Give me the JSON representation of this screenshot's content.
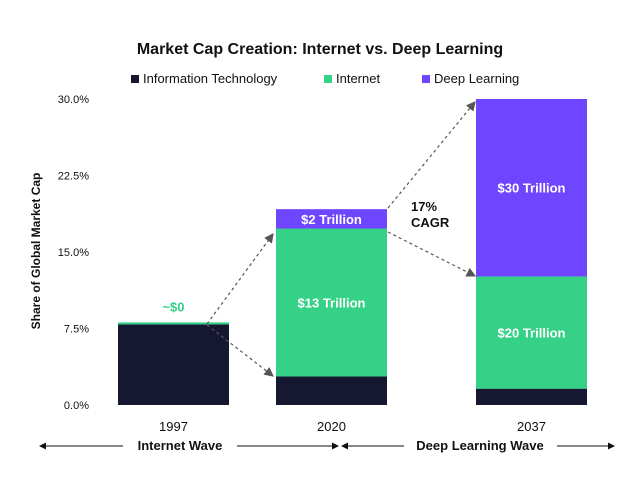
{
  "chart_data": {
    "type": "bar",
    "stacked": true,
    "title": "Market Cap Creation: Internet vs. Deep Learning",
    "ylabel": "Share of Global Market Cap",
    "xlabel": "",
    "categories": [
      "1997",
      "2020",
      "2037"
    ],
    "ylim": [
      0,
      30
    ],
    "y_ticks": [
      0,
      7.5,
      15,
      22.5,
      30
    ],
    "y_tick_labels": [
      "0.0%",
      "7.5%",
      "15.0%",
      "22.5%",
      "30.0%"
    ],
    "series": [
      {
        "name": "Information Technology",
        "color": "#161731",
        "values": [
          7.9,
          2.8,
          1.6
        ]
      },
      {
        "name": "Internet",
        "color": "#34d186",
        "values": [
          0.2,
          14.5,
          11.0
        ]
      },
      {
        "name": "Deep Learning",
        "color": "#6f46ff",
        "values": [
          0,
          1.9,
          17.4
        ]
      }
    ],
    "legend": {
      "placement": "top-center",
      "items": [
        {
          "label": "Information Technology",
          "color": "#161731"
        },
        {
          "label": "Internet",
          "color": "#34d186"
        },
        {
          "label": "Deep Learning",
          "color": "#6f46ff"
        }
      ]
    },
    "bar_labels": [
      {
        "category": "1997",
        "series": "Internet",
        "text": "~$0",
        "placement": "above",
        "color": "#34d186"
      },
      {
        "category": "2020",
        "series": "Internet",
        "text": "$13 Trillion",
        "placement": "center",
        "color": "#ffffff"
      },
      {
        "category": "2020",
        "series": "Deep Learning",
        "text": "$2 Trillion",
        "placement": "center",
        "color": "#ffffff"
      },
      {
        "category": "2037",
        "series": "Internet",
        "text": "$20 Trillion",
        "placement": "center",
        "color": "#ffffff"
      },
      {
        "category": "2037",
        "series": "Deep Learning",
        "text": "$30 Trillion",
        "placement": "center",
        "color": "#ffffff"
      }
    ],
    "annotations": [
      {
        "text_lines": [
          "17%",
          "CAGR"
        ],
        "near": "2020-2037"
      }
    ],
    "wave_labels": [
      "Internet Wave",
      "Deep Learning Wave"
    ]
  }
}
